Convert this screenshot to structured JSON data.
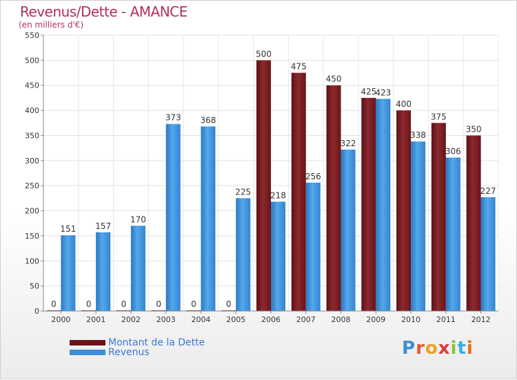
{
  "title": "Revenus/Dette - AMANCE",
  "subtitle": "(en milliers d'€)",
  "logo_text": "Proxiti",
  "colors": {
    "debt": "#7b1a20",
    "revenue": "#3a8fd8",
    "title": "#b0305a",
    "legend_text": "#3a7ad4"
  },
  "chart_data": {
    "type": "bar",
    "title": "Revenus/Dette - AMANCE",
    "subtitle": "(en milliers d'€)",
    "categories": [
      "2000",
      "2001",
      "2002",
      "2003",
      "2004",
      "2005",
      "2006",
      "2007",
      "2008",
      "2009",
      "2010",
      "2011",
      "2012"
    ],
    "series": [
      {
        "name": "Montant de la Dette",
        "values": [
          0,
          0,
          0,
          0,
          0,
          0,
          500,
          475,
          450,
          425,
          400,
          375,
          350
        ]
      },
      {
        "name": "Revenus",
        "values": [
          151,
          157,
          170,
          373,
          368,
          225,
          218,
          256,
          322,
          423,
          338,
          306,
          227
        ]
      }
    ],
    "ylim": [
      0,
      550
    ],
    "yticks": [
      0,
      50,
      100,
      150,
      200,
      250,
      300,
      350,
      400,
      450,
      500,
      550
    ],
    "grid": true,
    "legend": "bottom-left"
  }
}
